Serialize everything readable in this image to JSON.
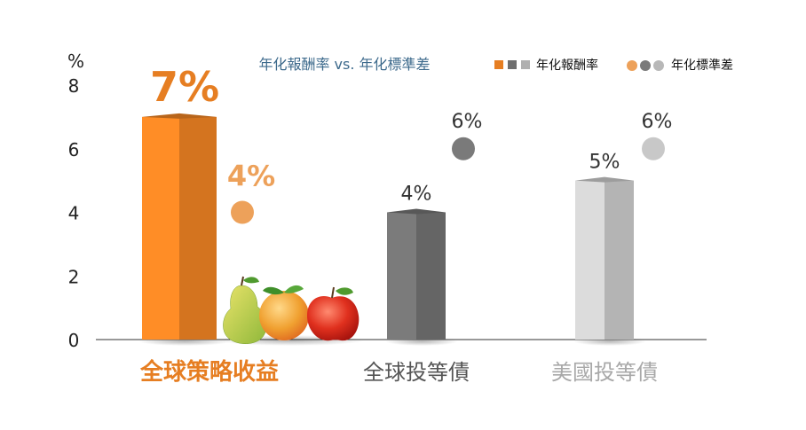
{
  "chart_data": {
    "type": "bar",
    "title": "年化報酬率 vs. 年化標準差",
    "ylabel": "%",
    "ylim": [
      0,
      8
    ],
    "yticks": [
      0,
      2,
      4,
      6,
      8
    ],
    "categories": [
      "全球策略收益",
      "全球投等債",
      "美國投等債"
    ],
    "series": [
      {
        "name": "年化報酬率",
        "kind": "bar",
        "values": [
          7,
          4,
          5
        ],
        "labels": [
          "7%",
          "4%",
          "5%"
        ],
        "colors": [
          "#e67e22",
          "#6e6e6e",
          "#c4c4c4"
        ]
      },
      {
        "name": "年化標準差",
        "kind": "dot",
        "values": [
          4,
          6,
          6
        ],
        "labels": [
          "4%",
          "6%",
          "6%"
        ],
        "colors": [
          "#eda15a",
          "#7a7a7a",
          "#c8c8c8"
        ]
      }
    ],
    "category_colors": [
      "#e67e22",
      "#555555",
      "#a8a8a8"
    ],
    "legend_position": "top-right",
    "grid": false,
    "decoration": "fruit-illustration"
  }
}
